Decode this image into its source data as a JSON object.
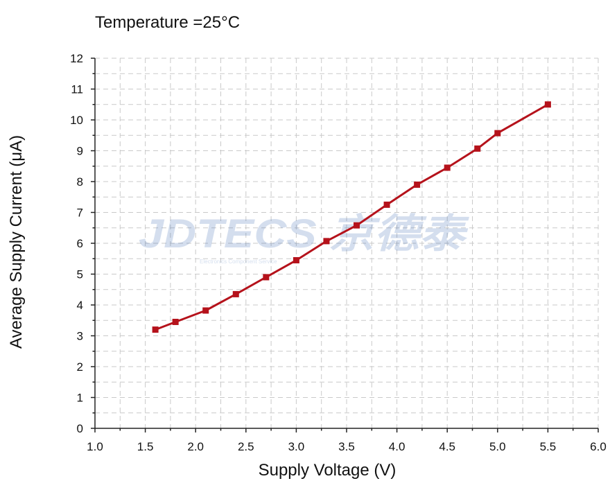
{
  "chart_data": {
    "type": "line",
    "title": "Temperature =25°C",
    "xlabel": "Supply Voltage (V)",
    "ylabel": "Average Supply Current (μA)",
    "xlim": [
      1.0,
      6.0
    ],
    "ylim": [
      0,
      12
    ],
    "x_ticks": [
      "1.0",
      "1.5",
      "2.0",
      "2.5",
      "3.0",
      "3.5",
      "4.0",
      "4.5",
      "5.0",
      "5.5",
      "6.0"
    ],
    "y_ticks": [
      "0",
      "1",
      "2",
      "3",
      "4",
      "5",
      "6",
      "7",
      "8",
      "9",
      "10",
      "11",
      "12"
    ],
    "grid": true,
    "series": [
      {
        "color": "#b5121b",
        "marker": "square",
        "x": [
          1.6,
          1.8,
          2.1,
          2.4,
          2.7,
          3.0,
          3.3,
          3.6,
          3.9,
          4.2,
          4.5,
          4.8,
          5.0,
          5.5
        ],
        "y": [
          3.2,
          3.45,
          3.82,
          4.35,
          4.9,
          5.45,
          6.07,
          6.58,
          7.25,
          7.9,
          8.45,
          9.07,
          9.57,
          10.5
        ]
      }
    ]
  },
  "watermark": {
    "logo_text": "JDTECS 京德泰",
    "tagline": "Electronics Component Service"
  }
}
